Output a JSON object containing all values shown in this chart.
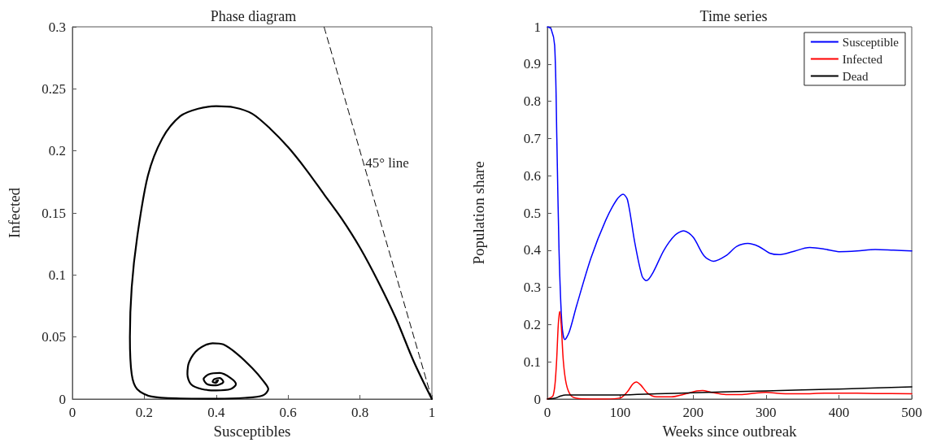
{
  "chart_data": [
    {
      "type": "line",
      "title": "Phase diagram",
      "xlabel": "Susceptibles",
      "ylabel": "Infected",
      "xlim": [
        0,
        1
      ],
      "ylim": [
        0,
        0.3
      ],
      "xticks": [
        0,
        0.2,
        0.4,
        0.6,
        0.8,
        1
      ],
      "yticks": [
        0,
        0.05,
        0.1,
        0.15,
        0.2,
        0.25,
        0.3
      ],
      "grid": false,
      "legend": false,
      "marker": "none",
      "annotations": [
        {
          "text": "45° line",
          "x": 0.815,
          "y": 0.19
        }
      ],
      "series": [
        {
          "color": "#000000",
          "line_style": "solid",
          "x": [
            1,
            0.95,
            0.9,
            0.85,
            0.8,
            0.75,
            0.7,
            0.65,
            0.6,
            0.55,
            0.5,
            0.45,
            0.4,
            0.35,
            0.3,
            0.25,
            0.21,
            0.18,
            0.165,
            0.16,
            0.165,
            0.18,
            0.22,
            0.3,
            0.4,
            0.48,
            0.53,
            0.545,
            0.53,
            0.5,
            0.46,
            0.42,
            0.39,
            0.35,
            0.325,
            0.32,
            0.33,
            0.36,
            0.4,
            0.44,
            0.455,
            0.44,
            0.41,
            0.38,
            0.365,
            0.375,
            0.4,
            0.42,
            0.41,
            0.395,
            0.39,
            0.4,
            0.405,
            0.4
          ],
          "values": [
            0,
            0.03,
            0.065,
            0.095,
            0.122,
            0.145,
            0.165,
            0.185,
            0.203,
            0.218,
            0.23,
            0.235,
            0.236,
            0.234,
            0.228,
            0.21,
            0.18,
            0.13,
            0.09,
            0.05,
            0.02,
            0.008,
            0.002,
            0.0005,
            0.0003,
            0.001,
            0.003,
            0.008,
            0.015,
            0.025,
            0.036,
            0.044,
            0.045,
            0.04,
            0.03,
            0.02,
            0.012,
            0.008,
            0.007,
            0.008,
            0.012,
            0.017,
            0.021,
            0.02,
            0.016,
            0.012,
            0.011,
            0.014,
            0.017,
            0.016,
            0.014,
            0.013,
            0.015,
            0.0145
          ]
        },
        {
          "color": "#000000",
          "line_style": "dashed",
          "x": [
            1,
            0.7
          ],
          "values": [
            0,
            0.3
          ]
        }
      ]
    },
    {
      "type": "line",
      "title": "Time series",
      "xlabel": "Weeks since outbreak",
      "ylabel": "Population share",
      "xlim": [
        0,
        500
      ],
      "ylim": [
        0,
        1
      ],
      "xticks": [
        0,
        100,
        200,
        300,
        400,
        500
      ],
      "yticks": [
        0,
        0.1,
        0.2,
        0.3,
        0.4,
        0.5,
        0.6,
        0.7,
        0.8,
        0.9,
        1
      ],
      "grid": false,
      "legend": "top right",
      "marker": "none",
      "series": [
        {
          "name": "Susceptible",
          "color": "#0000ff",
          "x": [
            0,
            5,
            10,
            13,
            16,
            20,
            24,
            30,
            40,
            60,
            80,
            95,
            104,
            110,
            120,
            130,
            136,
            145,
            160,
            175,
            187,
            200,
            215,
            228,
            245,
            260,
            275,
            290,
            305,
            318,
            335,
            360,
            380,
            400,
            425,
            450,
            475,
            500
          ],
          "values": [
            1,
            0.995,
            0.95,
            0.7,
            0.4,
            0.2,
            0.16,
            0.18,
            0.25,
            0.38,
            0.48,
            0.535,
            0.55,
            0.535,
            0.42,
            0.33,
            0.318,
            0.34,
            0.4,
            0.44,
            0.452,
            0.435,
            0.385,
            0.37,
            0.385,
            0.41,
            0.418,
            0.41,
            0.392,
            0.388,
            0.395,
            0.407,
            0.403,
            0.396,
            0.398,
            0.402,
            0.4,
            0.398
          ]
        },
        {
          "name": "Infected",
          "color": "#ff0000",
          "x": [
            0,
            8,
            12,
            15,
            17,
            19,
            22,
            26,
            32,
            40,
            60,
            80,
            100,
            110,
            117,
            122,
            128,
            138,
            150,
            170,
            190,
            205,
            213,
            225,
            245,
            265,
            285,
            300,
            320,
            350,
            380,
            400,
            450,
            500
          ],
          "values": [
            0,
            0.01,
            0.08,
            0.2,
            0.235,
            0.2,
            0.1,
            0.04,
            0.01,
            0.002,
            0,
            0,
            0.003,
            0.02,
            0.04,
            0.046,
            0.038,
            0.015,
            0.006,
            0.006,
            0.014,
            0.022,
            0.023,
            0.018,
            0.012,
            0.012,
            0.016,
            0.018,
            0.015,
            0.014,
            0.016,
            0.016,
            0.015,
            0.014
          ]
        },
        {
          "name": "Dead",
          "color": "#000000",
          "x": [
            0,
            10,
            18,
            25,
            100,
            150,
            200,
            300,
            400,
            500
          ],
          "values": [
            0,
            0.002,
            0.008,
            0.011,
            0.011,
            0.014,
            0.017,
            0.022,
            0.027,
            0.033
          ]
        }
      ]
    }
  ]
}
